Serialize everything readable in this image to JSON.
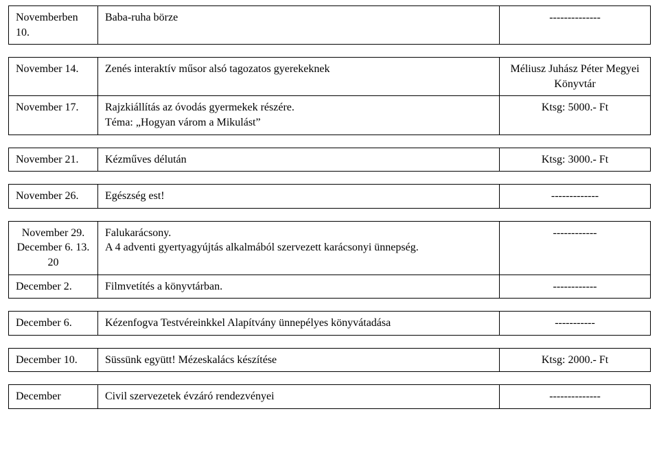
{
  "rows": [
    {
      "date": "Novemberben 10.",
      "event": "Baba-ruha börze",
      "cost": "--------------"
    },
    {
      "date": "November 14.",
      "event": "Zenés interaktív műsor alsó tagozatos gyerekeknek",
      "cost_line1": "Méliusz Juhász Péter Megyei",
      "cost_line2": "Könyvtár"
    },
    {
      "date": "November 17.",
      "event_line1": "Rajzkiállítás az óvodás gyermekek részére.",
      "event_line2": "Téma: „Hogyan várom a Mikulást”",
      "cost": "Ktsg: 5000.- Ft"
    },
    {
      "date": "November 21.",
      "event": "Kézműves délután",
      "cost": "Ktsg: 3000.- Ft"
    },
    {
      "date": "November 26.",
      "event": "Egészség est!",
      "cost": "-------------"
    },
    {
      "date_line1": "November 29.",
      "date_line2": "December 6. 13.",
      "date_line3": "20",
      "event_line1": "Falukarácsony.",
      "event_line2": "A 4 adventi gyertyagyújtás alkalmából szervezett karácsonyi ünnepség.",
      "cost": "------------"
    },
    {
      "date": "December 2.",
      "event": "Filmvetítés a könyvtárban.",
      "cost": "------------"
    },
    {
      "date": "December 6.",
      "event": "Kézenfogva Testvéreinkkel Alapítvány ünnepélyes könyvátadása",
      "cost": "-----------"
    },
    {
      "date": "December 10.",
      "event": "Süssünk együtt! Mézeskalács készítése",
      "cost": "Ktsg: 2000.- Ft"
    },
    {
      "date": "December",
      "event": "Civil szervezetek évzáró rendezvényei",
      "cost": "--------------"
    }
  ]
}
